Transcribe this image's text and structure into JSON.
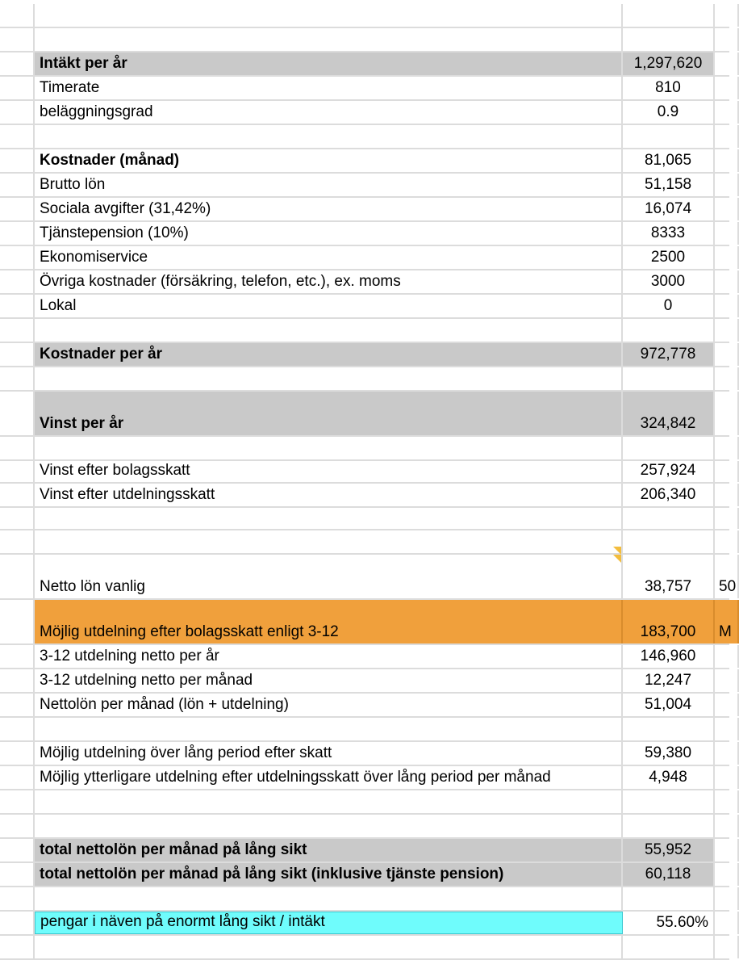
{
  "rows": [
    {
      "label": "",
      "value": ""
    },
    {
      "label": "",
      "value": ""
    },
    {
      "label": "Intäkt per år",
      "value": "1,297,620",
      "style": "gray bold"
    },
    {
      "label": "Timerate",
      "value": "810"
    },
    {
      "label": "beläggningsgrad",
      "value": "0.9"
    },
    {
      "label": "",
      "value": ""
    },
    {
      "label": "Kostnader (månad)",
      "value": "81,065",
      "style": "bold"
    },
    {
      "label": "Brutto lön",
      "value": "51,158"
    },
    {
      "label": "Sociala avgifter (31,42%)",
      "value": "16,074"
    },
    {
      "label": "Tjänstepension (10%)",
      "value": "8333"
    },
    {
      "label": "Ekonomiservice",
      "value": "2500"
    },
    {
      "label": "Övriga kostnader (försäkring, telefon, etc.), ex. moms",
      "value": "3000"
    },
    {
      "label": "Lokal",
      "value": "0"
    },
    {
      "label": "",
      "value": ""
    },
    {
      "label": "Kostnader per år",
      "value": "972,778",
      "style": "gray bold"
    },
    {
      "label": "",
      "value": ""
    },
    {
      "label": "Vinst per år",
      "value": "324,842",
      "style": "gray bold"
    },
    {
      "label": "",
      "value": ""
    },
    {
      "label": "Vinst efter bolagsskatt",
      "value": "257,924"
    },
    {
      "label": "Vinst efter utdelningsskatt",
      "value": "206,340"
    },
    {
      "label": "",
      "value": ""
    },
    {
      "label": "",
      "value": ""
    },
    {
      "label": "Netto lön vanlig",
      "value": "38,757",
      "extra": "50"
    },
    {
      "label": "Möjlig utdelning efter bolagsskatt enligt 3-12",
      "value": "183,700",
      "extra": "M",
      "style": "orange"
    },
    {
      "label": "3-12 utdelning netto per år",
      "value": "146,960"
    },
    {
      "label": "3-12 utdelning netto per månad",
      "value": "12,247"
    },
    {
      "label": "Nettolön per månad (lön + utdelning)",
      "value": "51,004"
    },
    {
      "label": "",
      "value": ""
    },
    {
      "label": "Möjlig utdelning över lång period efter skatt",
      "value": "59,380"
    },
    {
      "label": "Möjlig ytterligare utdelning efter utdelningsskatt över lång period per månad",
      "value": "4,948"
    },
    {
      "label": "",
      "value": ""
    },
    {
      "label": "",
      "value": ""
    },
    {
      "label": "total nettolön per månad på lång sikt",
      "value": "55,952",
      "style": "gray bold"
    },
    {
      "label": "total nettolön per månad på lång sikt (inklusive tjänste pension)",
      "value": "60,118",
      "style": "gray bold"
    },
    {
      "label": "",
      "value": ""
    },
    {
      "label": "pengar i näven på enormt lång sikt / intäkt",
      "value": "55.60%",
      "style": "cyan"
    },
    {
      "label": "",
      "value": ""
    }
  ]
}
